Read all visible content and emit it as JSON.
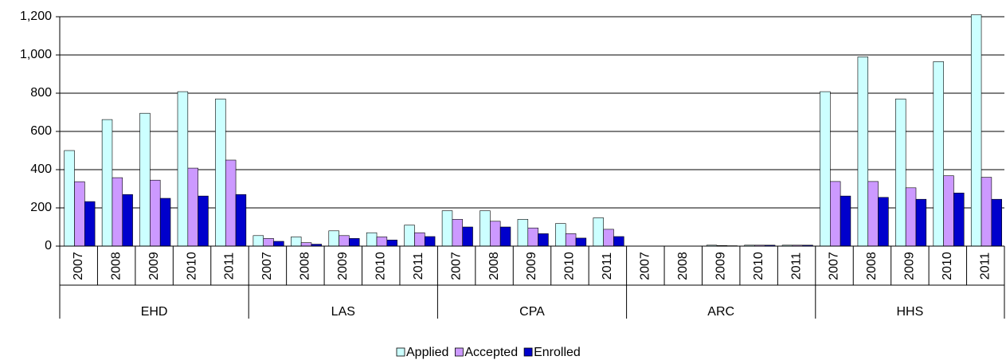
{
  "chart_data": {
    "type": "bar",
    "categories": [
      "2007",
      "2008",
      "2009",
      "2010",
      "2011",
      "2007",
      "2008",
      "2009",
      "2010",
      "2011",
      "2007",
      "2008",
      "2009",
      "2010",
      "2011",
      "2007",
      "2008",
      "2009",
      "2010",
      "2011",
      "2007",
      "2008",
      "2009",
      "2010",
      "2011"
    ],
    "groups": [
      "EHD",
      "LAS",
      "CPA",
      "ARC",
      "HHS"
    ],
    "series": [
      {
        "name": "Applied",
        "color": "#ccffff",
        "values": [
          500,
          662,
          695,
          808,
          770,
          55,
          48,
          80,
          70,
          110,
          185,
          185,
          140,
          118,
          148,
          0,
          0,
          5,
          5,
          5,
          808,
          990,
          770,
          965,
          1210
        ]
      },
      {
        "name": "Accepted",
        "color": "#cc99ff",
        "values": [
          337,
          358,
          345,
          408,
          450,
          40,
          18,
          55,
          48,
          70,
          140,
          130,
          95,
          65,
          88,
          0,
          0,
          3,
          5,
          5,
          338,
          338,
          305,
          368,
          360
        ]
      },
      {
        "name": "Enrolled",
        "color": "#0000cc",
        "values": [
          233,
          270,
          250,
          262,
          270,
          25,
          10,
          40,
          32,
          50,
          100,
          100,
          65,
          42,
          50,
          0,
          0,
          2,
          5,
          5,
          262,
          255,
          245,
          278,
          245
        ]
      }
    ],
    "ylim": [
      0,
      1200
    ],
    "yticks": [
      0,
      200,
      400,
      600,
      800,
      {
        "value": 1000,
        "label": "1,000"
      },
      {
        "value": 1200,
        "label": "1,200"
      }
    ],
    "grid": true
  }
}
